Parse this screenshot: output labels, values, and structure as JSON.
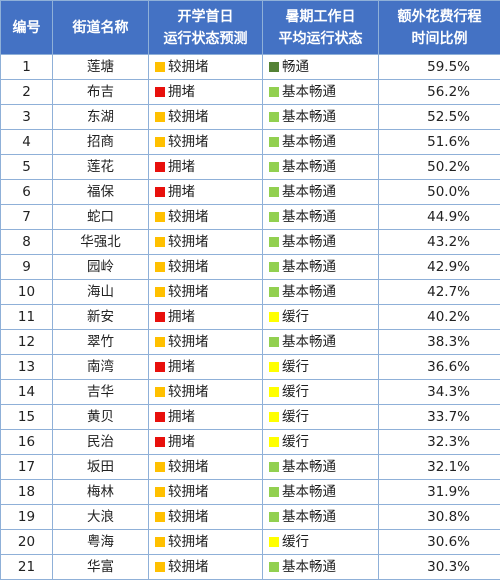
{
  "header": {
    "num": "编号",
    "name": "街道名称",
    "col2": [
      "开学首日",
      "运行状态预测"
    ],
    "col3": [
      "暑期工作日",
      "平均运行状态"
    ],
    "col4": [
      "额外花费行程",
      "时间比例"
    ]
  },
  "status_colors": {
    "较拥堵": "#ffc000",
    "拥堵": "#e8100c",
    "畅通": "#548235",
    "基本畅通": "#92d050",
    "缓行": "#ffff00"
  },
  "rows": [
    {
      "num": "1",
      "name": "莲塘",
      "forecast": "较拥堵",
      "summer": "畅通",
      "ratio": "59.5%"
    },
    {
      "num": "2",
      "name": "布吉",
      "forecast": "拥堵",
      "summer": "基本畅通",
      "ratio": "56.2%"
    },
    {
      "num": "3",
      "name": "东湖",
      "forecast": "较拥堵",
      "summer": "基本畅通",
      "ratio": "52.5%"
    },
    {
      "num": "4",
      "name": "招商",
      "forecast": "较拥堵",
      "summer": "基本畅通",
      "ratio": "51.6%"
    },
    {
      "num": "5",
      "name": "莲花",
      "forecast": "拥堵",
      "summer": "基本畅通",
      "ratio": "50.2%"
    },
    {
      "num": "6",
      "name": "福保",
      "forecast": "拥堵",
      "summer": "基本畅通",
      "ratio": "50.0%"
    },
    {
      "num": "7",
      "name": "蛇口",
      "forecast": "较拥堵",
      "summer": "基本畅通",
      "ratio": "44.9%"
    },
    {
      "num": "8",
      "name": "华强北",
      "forecast": "较拥堵",
      "summer": "基本畅通",
      "ratio": "43.2%"
    },
    {
      "num": "9",
      "name": "园岭",
      "forecast": "较拥堵",
      "summer": "基本畅通",
      "ratio": "42.9%"
    },
    {
      "num": "10",
      "name": "海山",
      "forecast": "较拥堵",
      "summer": "基本畅通",
      "ratio": "42.7%"
    },
    {
      "num": "11",
      "name": "新安",
      "forecast": "拥堵",
      "summer": "缓行",
      "ratio": "40.2%"
    },
    {
      "num": "12",
      "name": "翠竹",
      "forecast": "较拥堵",
      "summer": "基本畅通",
      "ratio": "38.3%"
    },
    {
      "num": "13",
      "name": "南湾",
      "forecast": "拥堵",
      "summer": "缓行",
      "ratio": "36.6%"
    },
    {
      "num": "14",
      "name": "吉华",
      "forecast": "较拥堵",
      "summer": "缓行",
      "ratio": "34.3%"
    },
    {
      "num": "15",
      "name": "黄贝",
      "forecast": "拥堵",
      "summer": "缓行",
      "ratio": "33.7%"
    },
    {
      "num": "16",
      "name": "民治",
      "forecast": "拥堵",
      "summer": "缓行",
      "ratio": "32.3%"
    },
    {
      "num": "17",
      "name": "坂田",
      "forecast": "较拥堵",
      "summer": "基本畅通",
      "ratio": "32.1%"
    },
    {
      "num": "18",
      "name": "梅林",
      "forecast": "较拥堵",
      "summer": "基本畅通",
      "ratio": "31.9%"
    },
    {
      "num": "19",
      "name": "大浪",
      "forecast": "较拥堵",
      "summer": "基本畅通",
      "ratio": "30.8%"
    },
    {
      "num": "20",
      "name": "粤海",
      "forecast": "较拥堵",
      "summer": "缓行",
      "ratio": "30.6%"
    },
    {
      "num": "21",
      "name": "华富",
      "forecast": "较拥堵",
      "summer": "基本畅通",
      "ratio": "30.3%"
    }
  ]
}
